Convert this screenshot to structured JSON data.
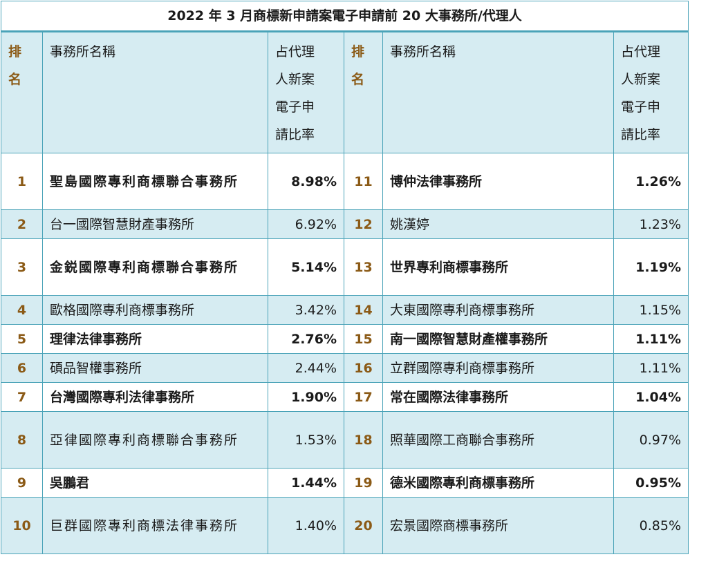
{
  "title": "2022 年 3 月商標新申請案電子申請前 20 大事務所/代理人",
  "headers": {
    "rank_line1": "排",
    "rank_line2": "名",
    "name": "事務所名稱",
    "ratio_line1": "占代理",
    "ratio_line2": "人新案",
    "ratio_line3": "電子申",
    "ratio_line4": "請比率"
  },
  "rows": [
    {
      "l_rank": "1",
      "l_name": "聖島國際專利商標聯合事務所",
      "l_pct": "8.98%",
      "r_rank": "11",
      "r_name": "博仲法律事務所",
      "r_pct": "1.26%"
    },
    {
      "l_rank": "2",
      "l_name": "台一國際智慧財產事務所",
      "l_pct": "6.92%",
      "r_rank": "12",
      "r_name": "姚漢婷",
      "r_pct": "1.23%"
    },
    {
      "l_rank": "3",
      "l_name": "金鋭國際專利商標聯合事務所",
      "l_pct": "5.14%",
      "r_rank": "13",
      "r_name": "世界專利商標事務所",
      "r_pct": "1.19%"
    },
    {
      "l_rank": "4",
      "l_name": "歐格國際專利商標事務所",
      "l_pct": "3.42%",
      "r_rank": "14",
      "r_name": "大東國際專利商標事務所",
      "r_pct": "1.15%"
    },
    {
      "l_rank": "5",
      "l_name": "理律法律事務所",
      "l_pct": "2.76%",
      "r_rank": "15",
      "r_name": "南一國際智慧財產權事務所",
      "r_pct": "1.11%"
    },
    {
      "l_rank": "6",
      "l_name": "碩品智權事務所",
      "l_pct": "2.44%",
      "r_rank": "16",
      "r_name": "立群國際專利商標事務所",
      "r_pct": "1.11%"
    },
    {
      "l_rank": "7",
      "l_name": "台灣國際專利法律事務所",
      "l_pct": "1.90%",
      "r_rank": "17",
      "r_name": "常在國際法律事務所",
      "r_pct": "1.04%"
    },
    {
      "l_rank": "8",
      "l_name": "亞律國際專利商標聯合事務所",
      "l_pct": "1.53%",
      "r_rank": "18",
      "r_name": "照華國際工商聯合事務所",
      "r_pct": "0.97%"
    },
    {
      "l_rank": "9",
      "l_name": "吳鵬君",
      "l_pct": "1.44%",
      "r_rank": "19",
      "r_name": "德米國際專利商標事務所",
      "r_pct": "0.95%"
    },
    {
      "l_rank": "10",
      "l_name": "巨群國際專利商標法律事務所",
      "l_pct": "1.40%",
      "r_rank": "20",
      "r_name": "宏景國際商標事務所",
      "r_pct": "0.85%"
    }
  ]
}
